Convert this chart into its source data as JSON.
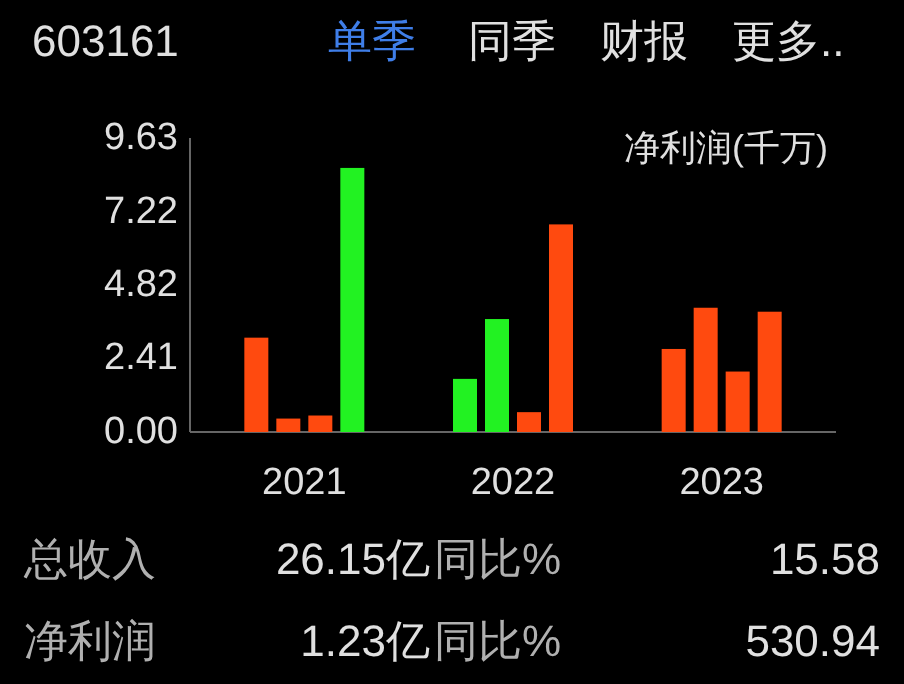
{
  "chart_data": {
    "type": "bar",
    "title": "603161",
    "subtitle": "净利润(千万)",
    "annotations": [
      "单季",
      "同季",
      "财报",
      "更多..",
      "总收入",
      "26.15亿",
      "同比%",
      "15.58",
      "净利润",
      "1.23亿",
      "同比%",
      "530.94"
    ],
    "categories": [
      "2021",
      "2022",
      "2023"
    ],
    "series": [
      {
        "colors": [
          "#ff4a0f",
          "#22f222",
          "#ff4a0f"
        ],
        "values": [
          3.09,
          1.74,
          2.72
        ]
      },
      {
        "colors": [
          "#ff4a0f",
          "#22f222",
          "#ff4a0f"
        ],
        "values": [
          0.44,
          3.7,
          4.07
        ]
      },
      {
        "colors": [
          "#ff4a0f",
          "#ff4a0f",
          "#ff4a0f"
        ],
        "values": [
          0.54,
          0.65,
          1.98
        ]
      },
      {
        "colors": [
          "#22f222",
          "#ff4a0f",
          "#ff4a0f"
        ],
        "values": [
          8.65,
          6.8,
          3.94
        ]
      }
    ],
    "ylim": [
      0,
      9.63
    ],
    "yticks": [
      {
        "value": 0,
        "label": "0.00"
      },
      {
        "value": 2.41,
        "label": "2.41"
      },
      {
        "value": 4.82,
        "label": "4.82"
      },
      {
        "value": 7.22,
        "label": "7.22"
      },
      {
        "value": 9.63,
        "label": "9.63"
      }
    ],
    "grid": false
  }
}
